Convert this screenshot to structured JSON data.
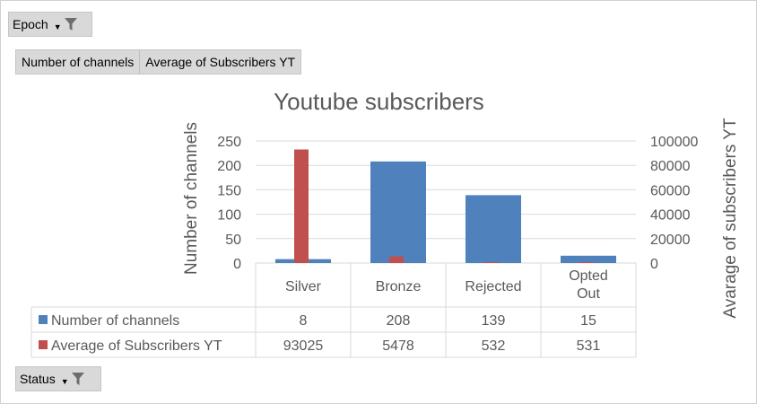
{
  "filters": {
    "epoch_label": "Epoch",
    "status_label": "Status"
  },
  "value_buttons": [
    "Number of channels",
    "Average of Subscribers YT"
  ],
  "colors": {
    "series1": "#4f81bd",
    "series2": "#c0504d",
    "grid": "#d9d9d9",
    "text": "#595959"
  },
  "chart_data": {
    "type": "bar",
    "title": "Youtube subscribers",
    "categories": [
      "Silver",
      "Bronze",
      "Rejected",
      "Opted Out"
    ],
    "ylabel": "Number of channels",
    "y2label": "Avarage of subscribers YT",
    "ylim": [
      0,
      250
    ],
    "y_ticks": [
      0,
      50,
      100,
      150,
      200,
      250
    ],
    "y2lim": [
      0,
      100000
    ],
    "y2_ticks": [
      0,
      20000,
      40000,
      60000,
      80000,
      100000
    ],
    "series": [
      {
        "name": "Number of channels",
        "axis": "primary",
        "values": [
          8,
          208,
          139,
          15
        ]
      },
      {
        "name": "Average of Subscribers YT",
        "axis": "secondary",
        "values": [
          93025,
          5478,
          532,
          531
        ]
      }
    ]
  }
}
